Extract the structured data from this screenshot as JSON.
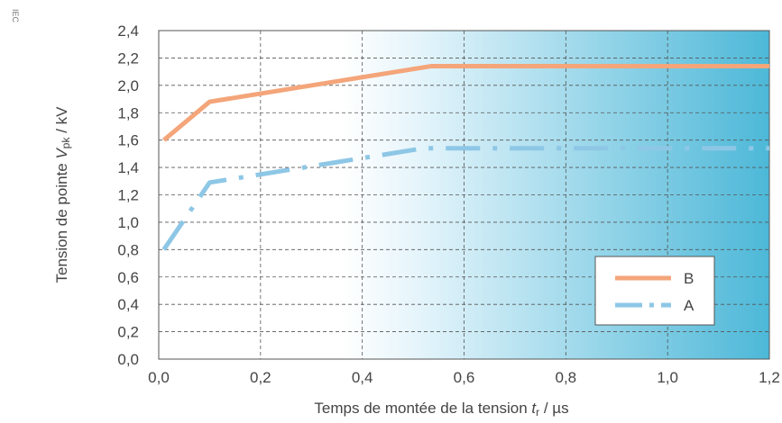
{
  "watermark": "IEC",
  "chart_data": {
    "type": "line",
    "title": "",
    "ylabel_parts": [
      "Tension de pointe ",
      "V",
      "pk",
      " / kV"
    ],
    "xlabel_parts": [
      "Temps de montée de la tension ",
      "t",
      "r",
      " / µs"
    ],
    "xlim": [
      0,
      1.2
    ],
    "ylim": [
      0,
      2.4
    ],
    "x_ticks": [
      "0,0",
      "0,2",
      "0,4",
      "0,6",
      "0,8",
      "1,0",
      "1,2"
    ],
    "y_ticks": [
      "0,0",
      "0,2",
      "0,4",
      "0,6",
      "0,8",
      "1,0",
      "1,2",
      "1,4",
      "1,6",
      "1,8",
      "2,0",
      "2,2",
      "2,4"
    ],
    "x_tick_values": [
      0,
      0.2,
      0.4,
      0.6,
      0.8,
      1.0,
      1.2
    ],
    "y_tick_values": [
      0,
      0.2,
      0.4,
      0.6,
      0.8,
      1.0,
      1.2,
      1.4,
      1.6,
      1.8,
      2.0,
      2.2,
      2.4
    ],
    "grid": true,
    "legend_position": "bottom-right",
    "series": [
      {
        "name": "B",
        "style": "solid",
        "color": "#f4a57a",
        "x": [
          0.01,
          0.1,
          0.535,
          1.2
        ],
        "y": [
          1.6,
          1.88,
          2.14,
          2.14
        ]
      },
      {
        "name": "A",
        "style": "dash-dot",
        "color": "#8ec7e6",
        "x": [
          0.01,
          0.1,
          0.52,
          1.2
        ],
        "y": [
          0.8,
          1.29,
          1.54,
          1.54
        ]
      }
    ],
    "background_gradient": {
      "from": "#ffffff",
      "to": "#4db8d8"
    }
  }
}
